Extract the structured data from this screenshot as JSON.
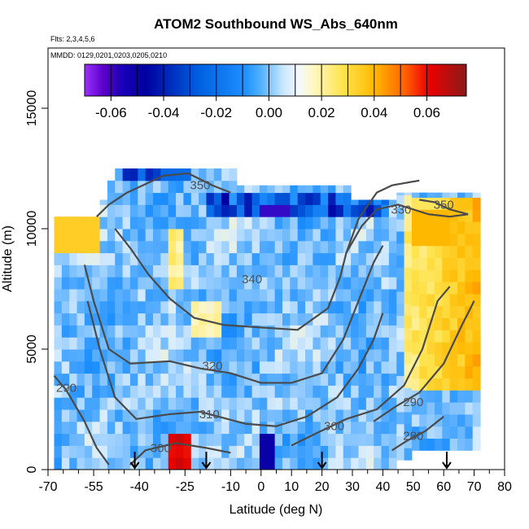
{
  "chart_data": {
    "type": "heatmap",
    "title": "ATOM2 Southbound WS_Abs_640nm",
    "flights_note": "Flts: 2,3,4,5,6",
    "dates_note": "MMDD: 0129,0201,0203,0205,0210",
    "xlabel": "Latitude (deg N)",
    "ylabel": "Altitude (m)",
    "xlim": [
      -70,
      80
    ],
    "ylim": [
      0,
      17500
    ],
    "x_ticks": [
      -70,
      -55,
      -40,
      -25,
      -10,
      0,
      10,
      20,
      30,
      40,
      50,
      60,
      70,
      80
    ],
    "x_minor_ticks": [
      -65,
      -60,
      -50,
      -45,
      -35,
      -30,
      -20,
      -15,
      -5,
      5,
      15,
      25,
      35,
      45,
      55,
      65,
      75
    ],
    "y_ticks": [
      0,
      5000,
      10000,
      15000
    ],
    "colorbar": {
      "min": -0.07,
      "max": 0.075,
      "ticks": [
        -0.06,
        -0.04,
        -0.02,
        0.0,
        0.02,
        0.04,
        0.06
      ],
      "tick_labels": [
        "-0.06",
        "-0.04",
        "-0.02",
        "0.00",
        "0.02",
        "0.04",
        "0.06"
      ]
    },
    "flight_arrows_lat": [
      -41.5,
      -18,
      20,
      61
    ],
    "contours": [
      {
        "label": "280",
        "label_at": [
          50,
          1400
        ],
        "points": [
          [
            43,
            800
          ],
          [
            48,
            1200
          ],
          [
            54,
            1600
          ],
          [
            60,
            2200
          ]
        ]
      },
      {
        "label": "290",
        "label_at": [
          -64,
          3400
        ],
        "points": [
          [
            -68,
            3900
          ],
          [
            -64,
            3300
          ],
          [
            -58,
            2000
          ],
          [
            -54,
            900
          ],
          [
            -50,
            200
          ]
        ]
      },
      {
        "label": "290",
        "label_at": [
          50,
          2800
        ],
        "points": [
          [
            37,
            2000
          ],
          [
            44,
            2600
          ],
          [
            52,
            3200
          ],
          [
            60,
            4400
          ],
          [
            66,
            6000
          ],
          [
            70,
            7000
          ]
        ]
      },
      {
        "label": "300",
        "label_at": [
          -33,
          900
        ],
        "points": [
          [
            -43,
            200
          ],
          [
            -38,
            800
          ],
          [
            -28,
            1100
          ],
          [
            -18,
            900
          ],
          [
            -10,
            700
          ]
        ]
      },
      {
        "label": "300",
        "label_at": [
          24,
          1800
        ],
        "points": [
          [
            10,
            1000
          ],
          [
            18,
            1500
          ],
          [
            28,
            2100
          ],
          [
            38,
            2500
          ],
          [
            47,
            3500
          ],
          [
            53,
            5000
          ],
          [
            58,
            7000
          ],
          [
            62,
            7600
          ]
        ]
      },
      {
        "label": "310",
        "label_at": [
          -17,
          2300
        ],
        "points": [
          [
            -57,
            7000
          ],
          [
            -53,
            5000
          ],
          [
            -48,
            3000
          ],
          [
            -41,
            2100
          ],
          [
            -30,
            2300
          ],
          [
            -20,
            2400
          ],
          [
            -5,
            1900
          ],
          [
            5,
            1800
          ],
          [
            15,
            2200
          ],
          [
            25,
            3000
          ],
          [
            32,
            4200
          ],
          [
            37,
            5400
          ],
          [
            40,
            6500
          ]
        ]
      },
      {
        "label": "320",
        "label_at": [
          -16,
          4300
        ],
        "points": [
          [
            -58,
            8500
          ],
          [
            -55,
            7000
          ],
          [
            -50,
            5000
          ],
          [
            -43,
            4400
          ],
          [
            -30,
            4500
          ],
          [
            -20,
            4200
          ],
          [
            -10,
            4000
          ],
          [
            0,
            3600
          ],
          [
            10,
            3600
          ],
          [
            20,
            4000
          ],
          [
            27,
            5400
          ],
          [
            32,
            7000
          ],
          [
            37,
            8600
          ],
          [
            40,
            9300
          ]
        ]
      },
      {
        "label": "330",
        "label_at": [
          46,
          10800
        ],
        "points": [
          [
            28,
            9000
          ],
          [
            33,
            10100
          ],
          [
            38,
            10800
          ],
          [
            45,
            11000
          ],
          [
            55,
            10600
          ],
          [
            62,
            10500
          ],
          [
            68,
            10600
          ]
        ]
      },
      {
        "label": "340",
        "label_at": [
          -3,
          7900
        ],
        "points": [
          [
            -48,
            10000
          ],
          [
            -43,
            9200
          ],
          [
            -37,
            8100
          ],
          [
            -30,
            7100
          ],
          [
            -22,
            6300
          ],
          [
            -12,
            6000
          ],
          [
            0,
            5900
          ],
          [
            12,
            5800
          ],
          [
            22,
            6700
          ],
          [
            26,
            8000
          ],
          [
            28,
            9000
          ],
          [
            32,
            10400
          ],
          [
            38,
            11500
          ],
          [
            43,
            11800
          ],
          [
            52,
            12000
          ]
        ]
      },
      {
        "label": "350",
        "label_at": [
          -20,
          11800
        ],
        "points": [
          [
            -54,
            10500
          ],
          [
            -50,
            11000
          ],
          [
            -44,
            11500
          ],
          [
            -32,
            12200
          ],
          [
            -24,
            12300
          ],
          [
            -16,
            11800
          ],
          [
            -10,
            11500
          ]
        ]
      },
      {
        "label": "350",
        "label_at": [
          60,
          11000
        ],
        "points": [
          [
            52,
            11200
          ],
          [
            57,
            11100
          ],
          [
            62,
            10800
          ],
          [
            68,
            10600
          ]
        ]
      }
    ]
  }
}
